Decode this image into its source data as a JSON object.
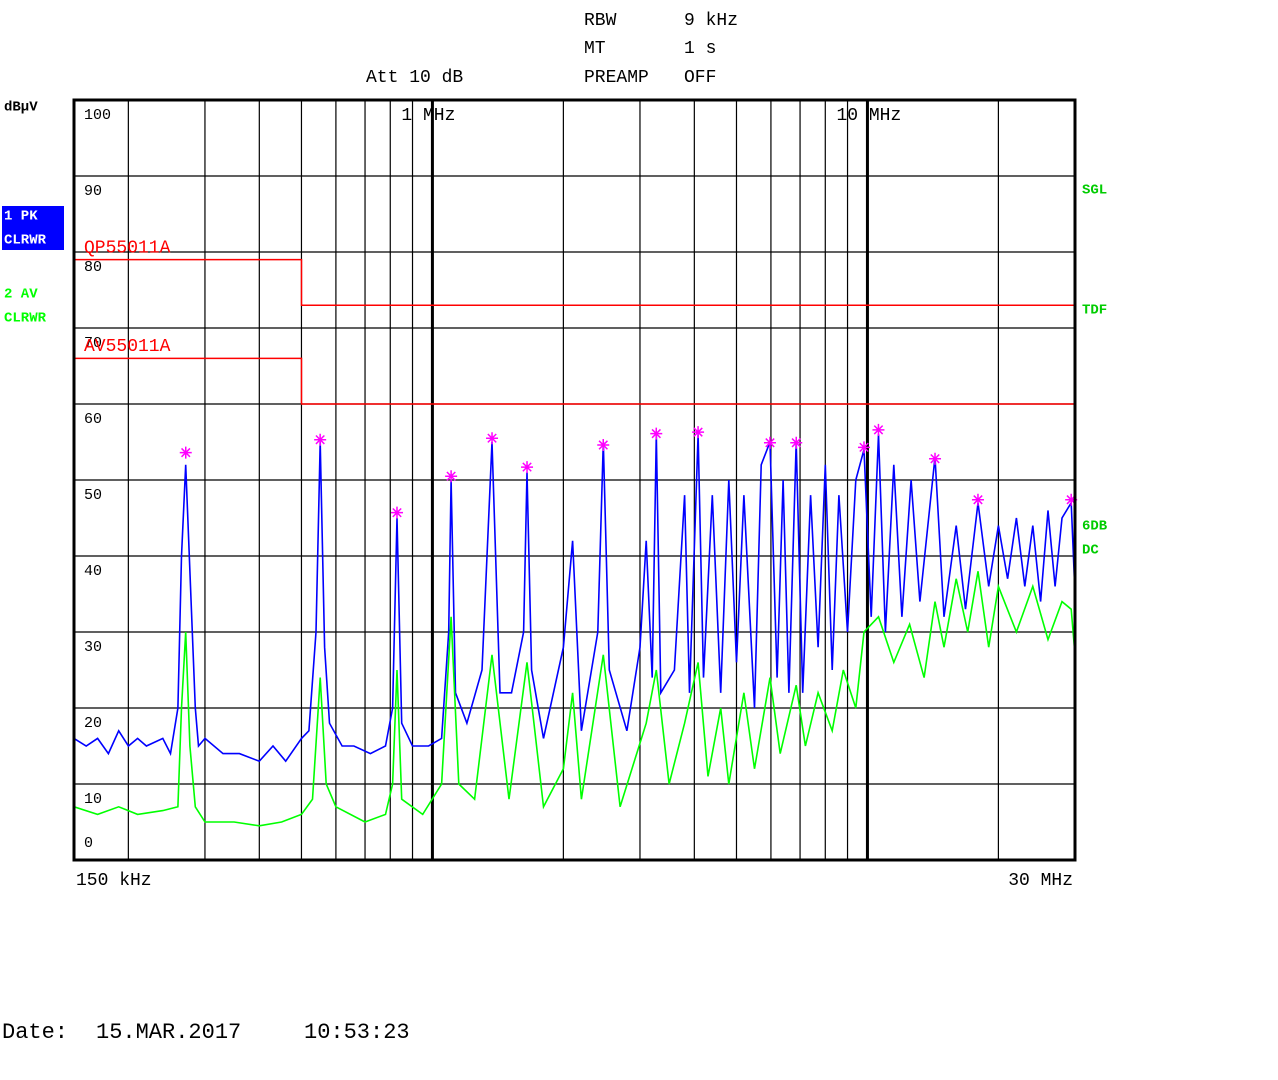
{
  "chart_data": {
    "type": "line",
    "y_label": "dBµV",
    "settings": {
      "rbw_label": "RBW",
      "rbw": "9 kHz",
      "mt_label": "MT",
      "mt": "1 s",
      "att": "Att 10 dB",
      "preamp_label": "PREAMP",
      "preamp": "OFF"
    },
    "status": [
      "SGL",
      "TDF",
      "6DB",
      "DC"
    ],
    "date_label": "Date:",
    "date": "15.MAR.2017",
    "time": "10:53:23",
    "log_x": true,
    "xlim": [
      0.15,
      30
    ],
    "xticks": [
      {
        "value": 0.15,
        "label": "150 kHz"
      },
      {
        "value": 1,
        "label": "1 MHz"
      },
      {
        "value": 10,
        "label": "10 MHz"
      },
      {
        "value": 30,
        "label": "30 MHz"
      }
    ],
    "xgrid": [
      0.2,
      0.3,
      0.4,
      0.5,
      0.6,
      0.7,
      0.8,
      0.9,
      2,
      3,
      4,
      5,
      6,
      7,
      8,
      9,
      20
    ],
    "ylim": [
      0,
      100
    ],
    "yticks": [
      0,
      10,
      20,
      30,
      40,
      50,
      60,
      70,
      80,
      90,
      100
    ],
    "grid": true,
    "series": [
      {
        "name": "1 PK",
        "mode": "CLRWR",
        "color": "#0000ff",
        "x": [
          0.15,
          0.16,
          0.17,
          0.18,
          0.19,
          0.2,
          0.21,
          0.22,
          0.24,
          0.25,
          0.26,
          0.265,
          0.271,
          0.277,
          0.285,
          0.29,
          0.3,
          0.33,
          0.36,
          0.4,
          0.43,
          0.46,
          0.5,
          0.52,
          0.54,
          0.552,
          0.565,
          0.58,
          0.62,
          0.66,
          0.72,
          0.78,
          0.81,
          0.829,
          0.85,
          0.9,
          0.98,
          1.05,
          1.09,
          1.104,
          1.13,
          1.2,
          1.3,
          1.371,
          1.43,
          1.52,
          1.62,
          1.65,
          1.69,
          1.8,
          2.0,
          2.1,
          2.2,
          2.4,
          2.47,
          2.55,
          2.8,
          3.0,
          3.1,
          3.2,
          3.27,
          3.35,
          3.6,
          3.8,
          3.9,
          4.08,
          4.2,
          4.4,
          4.6,
          4.8,
          5.0,
          5.2,
          5.5,
          5.7,
          5.97,
          6.2,
          6.4,
          6.6,
          6.86,
          7.1,
          7.4,
          7.7,
          8.0,
          8.3,
          8.6,
          9.0,
          9.4,
          9.82,
          10.2,
          10.6,
          11.0,
          11.5,
          12,
          12.6,
          13.2,
          14.3,
          15,
          16,
          16.8,
          17.95,
          19,
          20,
          21,
          22,
          23,
          24,
          25,
          26,
          27,
          28,
          29.4,
          30
        ],
        "values": [
          16,
          15,
          16,
          14,
          17,
          15,
          16,
          15,
          16,
          14,
          20,
          40,
          52,
          38,
          20,
          15,
          16,
          14,
          14,
          13,
          15,
          13,
          16,
          17,
          30,
          55,
          28,
          18,
          15,
          15,
          14,
          15,
          20,
          45,
          18,
          15,
          15,
          16,
          30,
          50,
          22,
          18,
          25,
          55,
          22,
          22,
          30,
          51,
          25,
          16,
          28,
          42,
          17,
          30,
          55,
          25,
          17,
          28,
          42,
          24,
          56,
          22,
          25,
          48,
          22,
          56,
          24,
          48,
          22,
          50,
          26,
          48,
          20,
          52,
          55,
          24,
          50,
          22,
          55,
          22,
          48,
          28,
          52,
          25,
          48,
          30,
          50,
          54,
          32,
          56,
          30,
          52,
          32,
          50,
          34,
          53,
          32,
          44,
          33,
          47,
          36,
          44,
          37,
          45,
          36,
          44,
          34,
          46,
          36,
          45,
          47,
          35
        ]
      },
      {
        "name": "2 AV",
        "mode": "CLRWR",
        "color": "#00ff00",
        "x": [
          0.15,
          0.17,
          0.19,
          0.21,
          0.24,
          0.26,
          0.265,
          0.271,
          0.277,
          0.285,
          0.3,
          0.35,
          0.4,
          0.45,
          0.5,
          0.53,
          0.552,
          0.57,
          0.6,
          0.7,
          0.78,
          0.81,
          0.829,
          0.85,
          0.95,
          1.05,
          1.104,
          1.15,
          1.25,
          1.371,
          1.5,
          1.65,
          1.8,
          2.0,
          2.1,
          2.2,
          2.47,
          2.7,
          3.1,
          3.27,
          3.5,
          3.8,
          4.08,
          4.3,
          4.6,
          4.8,
          5.2,
          5.5,
          5.97,
          6.3,
          6.86,
          7.2,
          7.7,
          8.3,
          8.8,
          9.4,
          9.82,
          10.6,
          11.5,
          12.5,
          13.5,
          14.3,
          15,
          16,
          17,
          17.95,
          19,
          20,
          22,
          24,
          26,
          28,
          29.4,
          30
        ],
        "values": [
          7,
          6,
          7,
          6,
          6.5,
          7,
          20,
          30,
          15,
          7,
          5,
          5,
          4.5,
          5,
          6,
          8,
          24,
          10,
          7,
          5,
          6,
          10,
          25,
          8,
          6,
          10,
          32,
          10,
          8,
          27,
          8,
          26,
          7,
          12,
          22,
          8,
          27,
          7,
          18,
          25,
          10,
          18,
          26,
          11,
          20,
          10,
          22,
          12,
          24,
          14,
          23,
          15,
          22,
          17,
          25,
          20,
          30,
          32,
          26,
          31,
          24,
          34,
          28,
          37,
          30,
          38,
          28,
          36,
          30,
          36,
          29,
          34,
          33,
          27
        ]
      }
    ],
    "limit_lines": [
      {
        "name": "QP55011A",
        "color": "#ff0000",
        "x": [
          0.15,
          0.5,
          0.5,
          30
        ],
        "values": [
          79,
          79,
          73,
          73
        ]
      },
      {
        "name": "AV55011A",
        "color": "#ff0000",
        "x": [
          0.15,
          0.5,
          0.5,
          30
        ],
        "values": [
          66,
          66,
          60,
          60
        ]
      }
    ],
    "markers": {
      "color": "#ff00ff",
      "x": [
        0.271,
        0.552,
        0.829,
        1.104,
        1.371,
        1.65,
        2.47,
        3.27,
        4.08,
        5.97,
        6.86,
        9.82,
        10.6,
        14.3,
        17.95,
        29.4
      ],
      "values": [
        53.6,
        55.3,
        45.7,
        50.5,
        55.5,
        51.7,
        54.6,
        56.1,
        56.3,
        54.9,
        54.9,
        54.3,
        56.6,
        52.8,
        47.4,
        47.4
      ]
    }
  }
}
